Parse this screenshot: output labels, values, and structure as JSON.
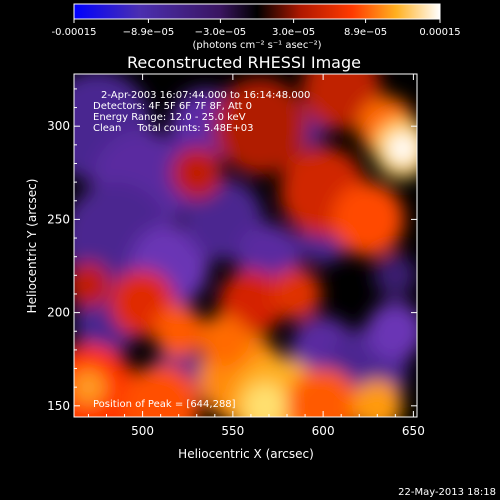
{
  "chart_data": {
    "type": "heatmap",
    "title": "Reconstructed RHESSI Image",
    "xlabel": "Heliocentric X (arcsec)",
    "ylabel": "Heliocentric Y (arcsec)",
    "xlim": [
      462,
      652
    ],
    "ylim": [
      144,
      328
    ],
    "xticks": [
      500,
      550,
      600,
      650
    ],
    "yticks": [
      150,
      200,
      250,
      300
    ],
    "colorbar": {
      "range": [
        -0.00015,
        0.00015
      ],
      "tick_values": [
        -0.00015,
        -8.9e-05,
        -3e-05,
        3e-05,
        8.9e-05,
        0.00015
      ],
      "tick_labels": [
        "-0.00015",
        "−8.9e−05",
        "−3.0e−05",
        "3.0e−05",
        "8.9e−05",
        "0.00015"
      ],
      "unit_label": "(photons cm⁻² s⁻¹ asec⁻²)",
      "colors": [
        "#0000ff",
        "#5b2fa6",
        "#8a2ab4",
        "#000000",
        "#a01a05",
        "#e62400",
        "#ff8a00",
        "#ffd24a",
        "#ffffff"
      ]
    },
    "info_lines": [
      "2-Apr-2003 16:07:44.000 to 16:14:48.000",
      "Detectors: 4F 5F 6F 7F 8F, Att 0",
      "Energy Range: 12.0 - 25.0 keV",
      "Clean     Total counts: 5.48E+03"
    ],
    "peak_label": "Position of Peak = [644,288]",
    "peak_position": [
      644,
      288
    ],
    "grid": false
  },
  "footer": {
    "date": "22-May-2013 18:18"
  }
}
